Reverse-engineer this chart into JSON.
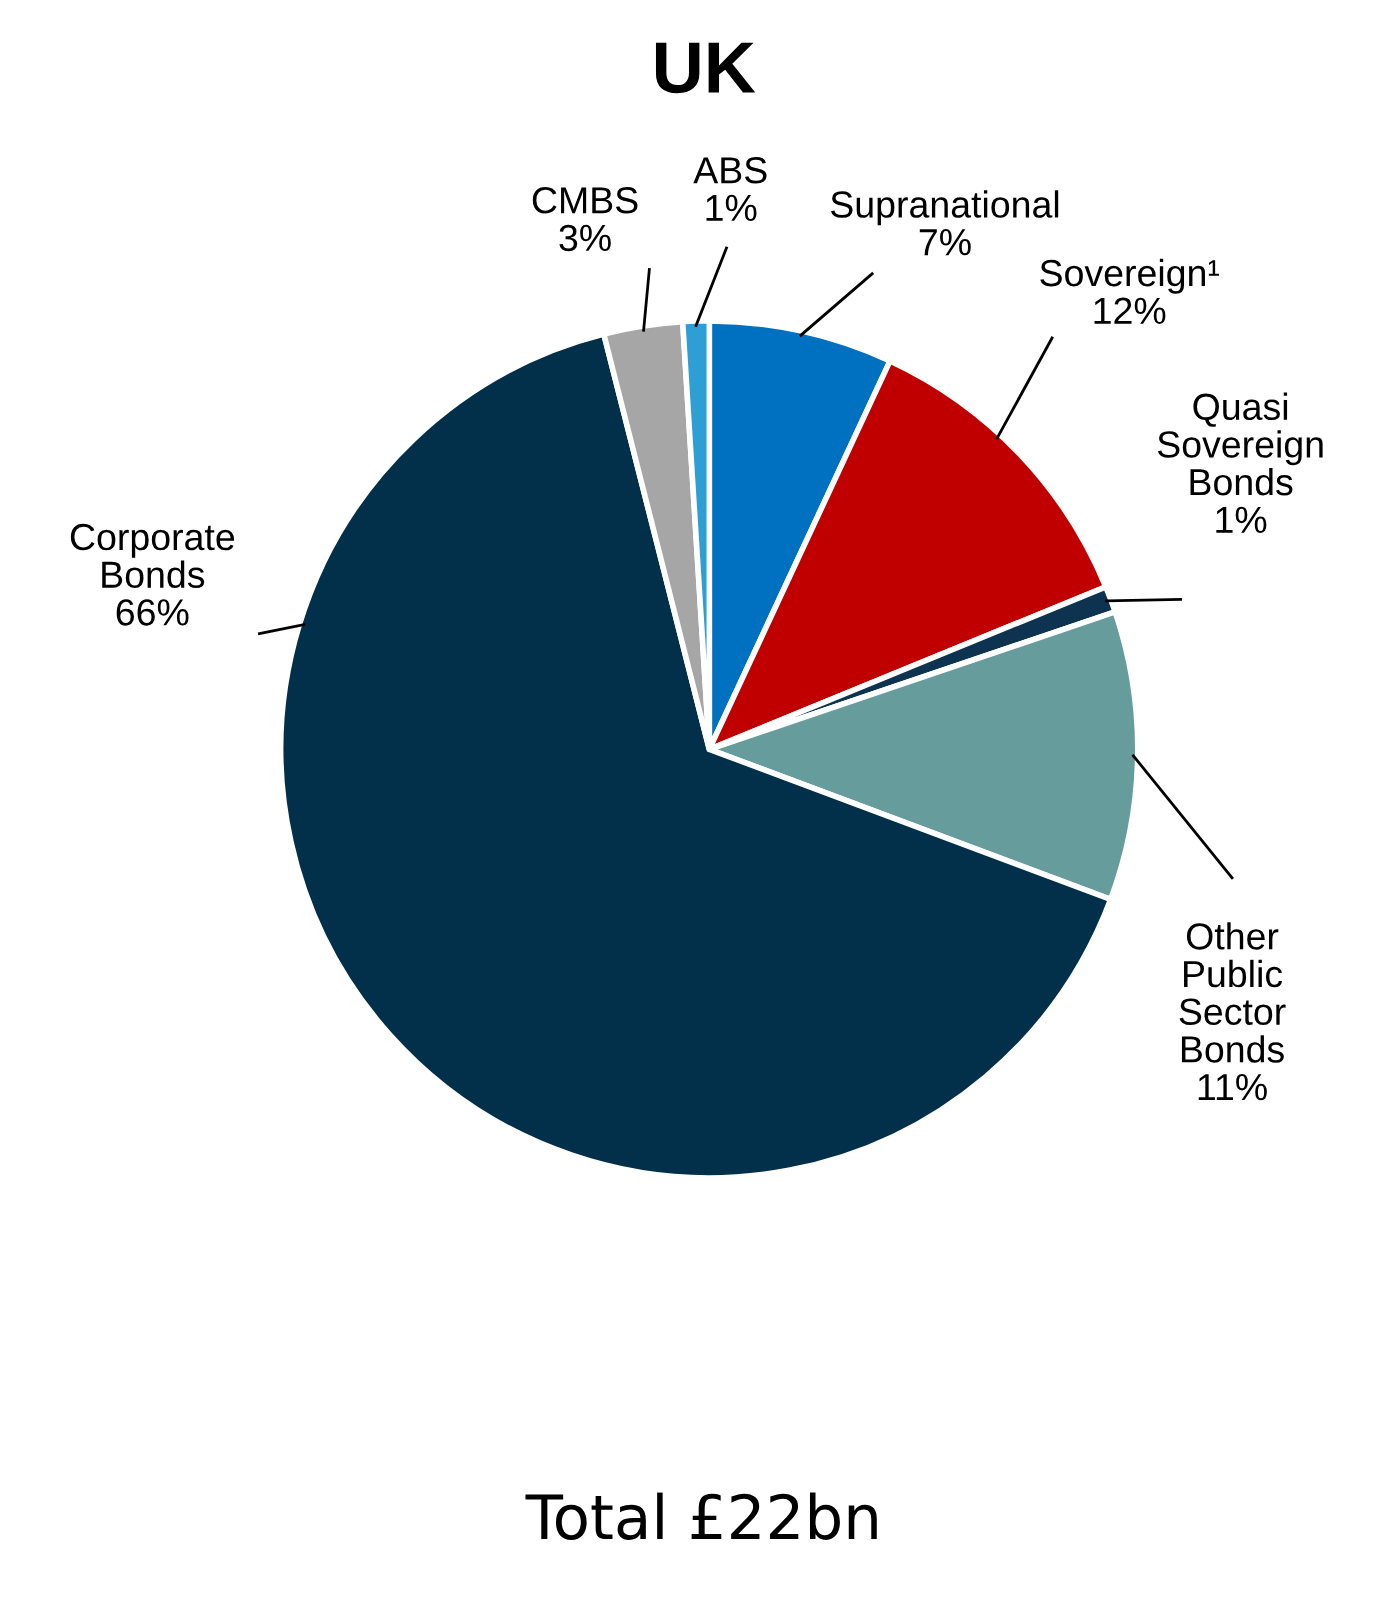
{
  "chart_data": {
    "type": "pie",
    "title": "UK",
    "categories": [
      "Supranational",
      "Sovereign¹",
      "Quasi Sovereign Bonds",
      "Other Public Sector Bonds",
      "Corporate Bonds",
      "CMBS",
      "ABS"
    ],
    "values": [
      7,
      12,
      1,
      11,
      66,
      3,
      1
    ],
    "colors": [
      "#0070c0",
      "#c00000",
      "#0d3350",
      "#669c9c",
      "#02304a",
      "#a6a6a6",
      "#2e9fd4"
    ],
    "value_labels": [
      "7%",
      "12%",
      "1%",
      "11%",
      "66%",
      "3%",
      "1%"
    ],
    "annotations": [
      "Total £22bn"
    ]
  }
}
